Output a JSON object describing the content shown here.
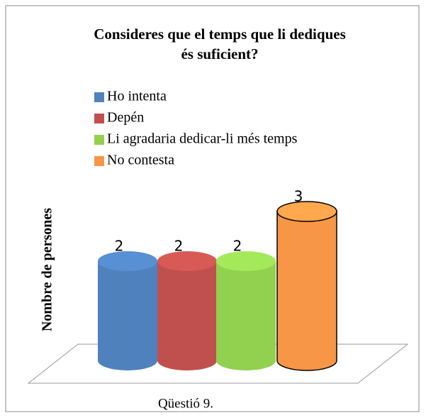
{
  "chart_data": {
    "type": "bar",
    "title": [
      "Consideres que el temps que li dediques",
      "és suficient?"
    ],
    "ylabel": "Nombre de persones",
    "categories": [
      "Qüestió 9."
    ],
    "series": [
      {
        "name": "Ho intenta",
        "color": "#4f81bd",
        "values": [
          2
        ]
      },
      {
        "name": "Depén",
        "color": "#c0504d",
        "values": [
          2
        ]
      },
      {
        "name": "Li agradaria dedicar-li més temps",
        "color": "#92d050",
        "values": [
          2
        ]
      },
      {
        "name": "No contesta",
        "color": "#f79646",
        "values": [
          3
        ]
      }
    ]
  }
}
